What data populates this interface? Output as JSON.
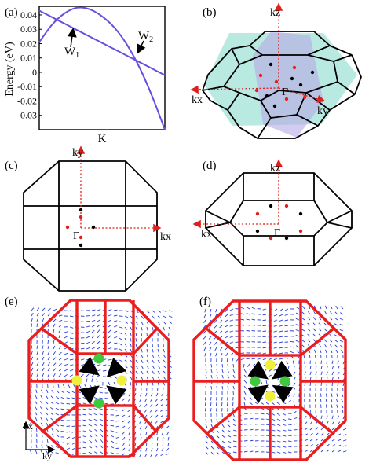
{
  "panels": {
    "a": {
      "label": "(a)",
      "ylabel": "Energy (eV)",
      "xlabel": "K",
      "yticks": [
        "0.04",
        "0.03",
        "0.02",
        "0.01",
        "0",
        "-0.01",
        "-0.02",
        "-0.03"
      ],
      "annotations": [
        {
          "text": "W",
          "sub": "1"
        },
        {
          "text": "W",
          "sub": "2"
        }
      ]
    },
    "b": {
      "label": "(b)",
      "axes": [
        "kz",
        "kx",
        "ky"
      ],
      "center": "Γ"
    },
    "c": {
      "label": "(c)",
      "axes": [
        "ky",
        "kx"
      ],
      "center": "Γ"
    },
    "d": {
      "label": "(d)",
      "axes": [
        "kz",
        "kx"
      ],
      "center": "Γ"
    },
    "e": {
      "label": "(e)",
      "axes": [
        "kx",
        "ky"
      ]
    },
    "f": {
      "label": "(f)"
    }
  },
  "colors": {
    "band": "#6b4de0",
    "arrow_red": "#e0201c",
    "bz_red": "#ea1e1e",
    "field_blue": "#2a3fd8",
    "dot_green": "#3ec93e",
    "dot_yellow": "#f0ef3a",
    "plane_cyan": "#7fd8c8",
    "plane_violet": "#b7a9e6"
  },
  "chart_data": {
    "type": "line",
    "xlabel": "K",
    "ylabel": "Energy (eV)",
    "ylim": [
      -0.04,
      0.046
    ],
    "x": [
      0,
      0.1,
      0.2,
      0.3,
      0.4,
      0.5,
      0.6,
      0.7,
      0.8,
      0.9,
      1.0
    ],
    "series": [
      {
        "values": [
          0.043,
          0.0385,
          0.034,
          0.0295,
          0.025,
          0.0205,
          0.016,
          0.0115,
          0.007,
          0.0025,
          -0.002
        ]
      },
      {
        "values": [
          0.021,
          0.033,
          0.041,
          0.045,
          0.044,
          0.039,
          0.031,
          0.019,
          0.003,
          -0.017,
          -0.04
        ]
      }
    ],
    "crossings": [
      "W1",
      "W2"
    ]
  }
}
